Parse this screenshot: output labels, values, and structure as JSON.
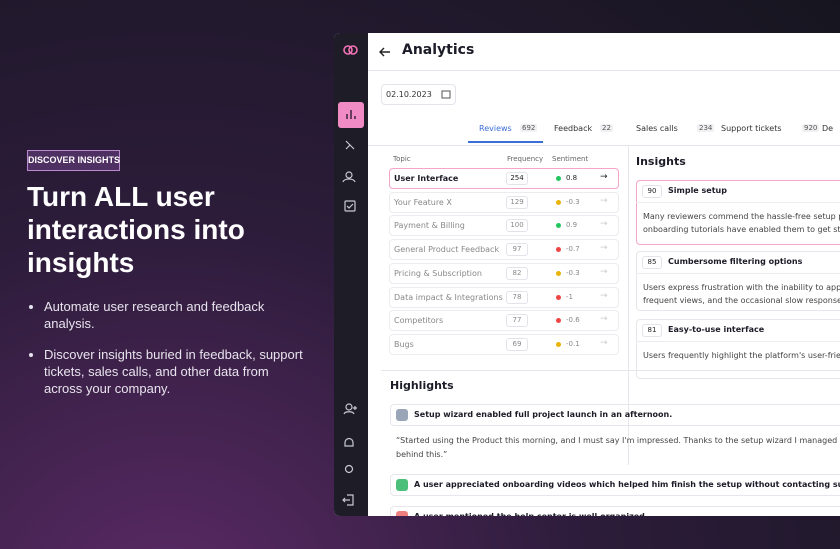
{
  "hero": {
    "badge": "DISCOVER INSIGHTS",
    "headline": "Turn ALL user interactions into insights",
    "bullets": [
      "Automate user research and feedback analysis.",
      "Discover insights buried in feedback, support tickets, sales calls, and other data from across your company."
    ]
  },
  "app": {
    "title": "Analytics",
    "date": "02.10.2023",
    "tabs": [
      {
        "label": "Reviews",
        "count": "692"
      },
      {
        "label": "Feedback",
        "count": "22"
      },
      {
        "label": "Sales calls",
        "count": "234"
      },
      {
        "label": "Support tickets",
        "count": "920"
      },
      {
        "label": "De"
      }
    ],
    "table": {
      "headers": [
        "Topic",
        "Frequency",
        "Sentiment"
      ],
      "rows": [
        [
          "User Interface",
          "254",
          "0.8",
          "#22c55e"
        ],
        [
          "Your Feature X",
          "129",
          "-0.3",
          "#eab308"
        ],
        [
          "Payment & Billing",
          "100",
          "0.9",
          "#22c55e"
        ],
        [
          "General Product Feedback",
          "97",
          "-0.7",
          "#ef4444"
        ],
        [
          "Pricing & Subscription",
          "82",
          "-0.3",
          "#eab308"
        ],
        [
          "Data impact & Integrations",
          "78",
          "-1",
          "#ef4444"
        ],
        [
          "Competitors",
          "77",
          "-0.6",
          "#ef4444"
        ],
        [
          "Bugs",
          "69",
          "-0.1",
          "#eab308"
        ]
      ]
    },
    "insights": {
      "title": "Insights",
      "cards": [
        {
          "score": "90",
          "title": "Simple setup",
          "lines": [
            "Many reviewers commend the hassle-free setup pro",
            "onboarding tutorials have enabled them to get start"
          ]
        },
        {
          "score": "85",
          "title": "Cumbersome filtering options",
          "lines": [
            "Users express frustration with the inability to apply m",
            "frequent views, and the occasional slow response tim"
          ]
        },
        {
          "score": "81",
          "title": "Easy-to-use interface",
          "lines": [
            "Users frequently highlight the platform's user-friendl"
          ]
        }
      ]
    },
    "highlights": {
      "title": "Highlights",
      "items": [
        {
          "text": "Setup wizard enabled full project launch in an afternoon.",
          "quote": [
            "“Started using the Product this morning, and I must say I'm impressed. Thanks to the setup wizard I managed to launc",
            "behind this.”"
          ]
        },
        {
          "text": "A user appreciated onboarding videos which helped him finish the setup without contacting support."
        },
        {
          "text": "A user mentioned the help center is well organized."
        }
      ]
    }
  }
}
